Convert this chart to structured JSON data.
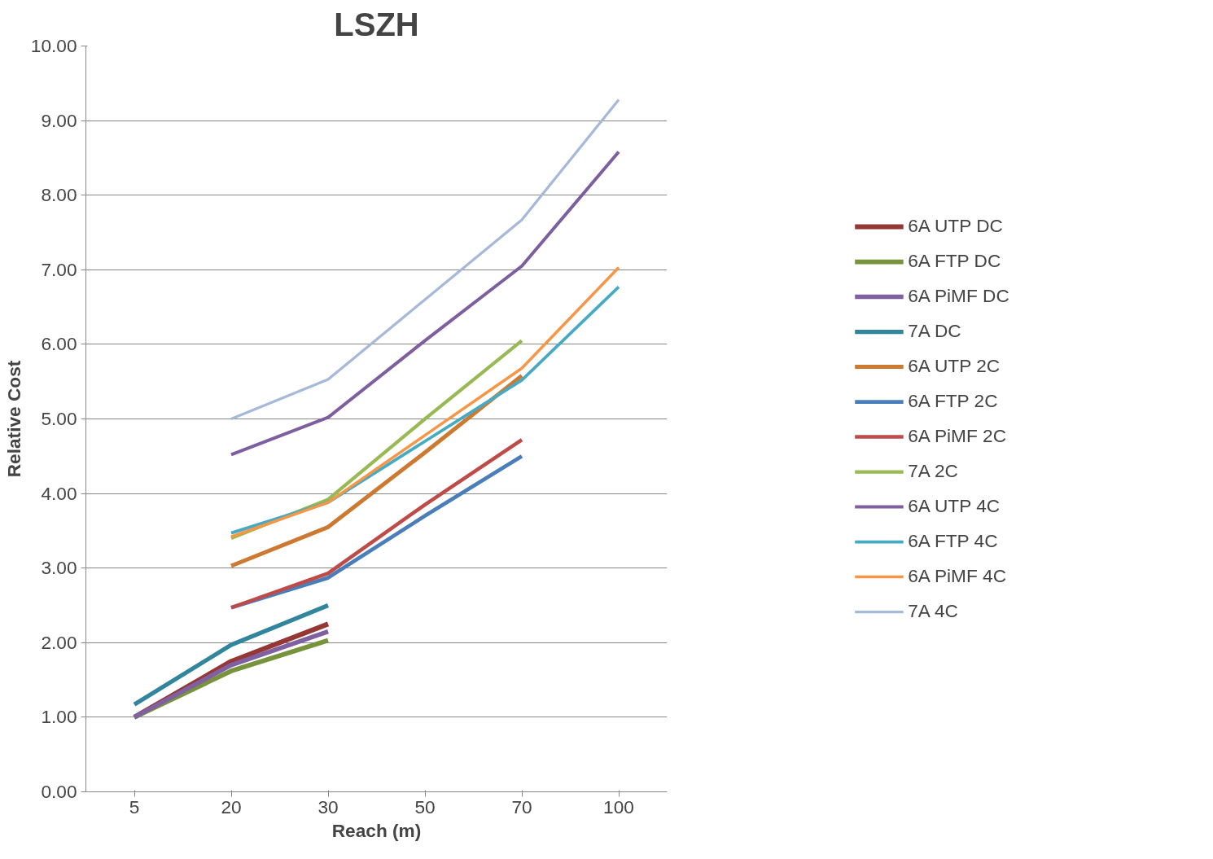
{
  "chart_data": {
    "type": "line",
    "title": "LSZH",
    "xlabel": "Reach (m)",
    "ylabel": "Relative Cost",
    "categories": [
      "5",
      "20",
      "30",
      "50",
      "70",
      "100"
    ],
    "ylim": [
      0,
      10
    ],
    "yticks": [
      {
        "value": 0,
        "label": "0.00"
      },
      {
        "value": 1,
        "label": "1.00"
      },
      {
        "value": 2,
        "label": "2.00"
      },
      {
        "value": 3,
        "label": "3.00"
      },
      {
        "value": 4,
        "label": "4.00"
      },
      {
        "value": 5,
        "label": "5.00"
      },
      {
        "value": 6,
        "label": "6.00"
      },
      {
        "value": 7,
        "label": "7.00"
      },
      {
        "value": 8,
        "label": "8.00"
      },
      {
        "value": 9,
        "label": "9.00"
      },
      {
        "value": 10,
        "label": "10.00"
      }
    ],
    "grid": "y",
    "legend": "right",
    "marker": "none",
    "line_style": "solid",
    "series": [
      {
        "name": "6A UTP DC",
        "color": "#953735",
        "values": [
          1.0,
          1.75,
          2.25,
          null,
          null,
          null
        ]
      },
      {
        "name": "6A FTP DC",
        "color": "#77933c",
        "values": [
          1.0,
          1.62,
          2.03,
          null,
          null,
          null
        ]
      },
      {
        "name": "6A PiMF DC",
        "color": "#7f60a0",
        "values": [
          1.0,
          1.7,
          2.15,
          null,
          null,
          null
        ]
      },
      {
        "name": "7A DC",
        "color": "#31859c",
        "values": [
          1.17,
          1.97,
          2.5,
          null,
          null,
          null
        ]
      },
      {
        "name": "6A UTP 2C",
        "color": "#cc7a32",
        "values": [
          null,
          3.03,
          3.55,
          4.55,
          5.58,
          null
        ]
      },
      {
        "name": "6A FTP 2C",
        "color": "#4a7ebb",
        "values": [
          null,
          2.47,
          2.87,
          3.7,
          4.5,
          null
        ]
      },
      {
        "name": "6A PiMF 2C",
        "color": "#be4b48",
        "values": [
          null,
          2.47,
          2.93,
          3.85,
          4.72,
          null
        ]
      },
      {
        "name": "7A 2C",
        "color": "#98b954",
        "values": [
          null,
          3.4,
          3.92,
          5.0,
          6.05,
          null
        ]
      },
      {
        "name": "6A UTP 4C",
        "color": "#7d5fa0",
        "values": [
          null,
          4.52,
          5.02,
          6.05,
          7.05,
          8.58
        ]
      },
      {
        "name": "6A FTP 4C",
        "color": "#46aac5",
        "values": [
          null,
          3.47,
          3.88,
          4.7,
          5.52,
          6.77
        ]
      },
      {
        "name": "6A PiMF 4C",
        "color": "#f79646",
        "values": [
          null,
          3.42,
          3.88,
          4.78,
          5.68,
          7.03
        ]
      },
      {
        "name": "7A 4C",
        "color": "#a7b9d8",
        "values": [
          null,
          5.0,
          5.53,
          6.6,
          7.67,
          9.28
        ]
      }
    ]
  }
}
